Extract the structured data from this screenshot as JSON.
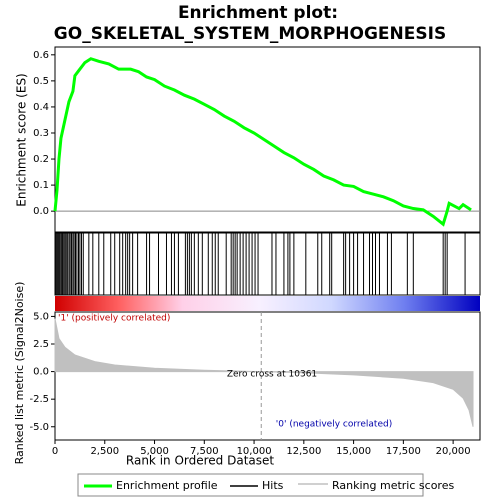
{
  "chart_data": [
    {
      "type": "line",
      "title": "Enrichment plot:",
      "subtitle": "GO_SKELETAL_SYSTEM_MORPHOGENESIS",
      "ylabel": "Enrichment score (ES)",
      "x": [
        0,
        100,
        200,
        300,
        500,
        700,
        900,
        1000,
        1200,
        1500,
        1800,
        2200,
        2700,
        3200,
        3800,
        4200,
        4600,
        5000,
        5500,
        6000,
        6500,
        7000,
        7500,
        8000,
        8500,
        9000,
        9500,
        10000,
        10500,
        11000,
        11500,
        12000,
        12500,
        13000,
        13500,
        14000,
        14500,
        15000,
        15500,
        16000,
        16500,
        17000,
        17500,
        18000,
        18500,
        19000,
        19500,
        19700,
        19800,
        20300,
        20500,
        20900
      ],
      "series": [
        {
          "name": "Enrichment profile",
          "color": "#00ff00",
          "values": [
            0,
            0.08,
            0.2,
            0.28,
            0.35,
            0.42,
            0.46,
            0.52,
            0.54,
            0.57,
            0.585,
            0.575,
            0.565,
            0.545,
            0.545,
            0.535,
            0.515,
            0.505,
            0.48,
            0.465,
            0.445,
            0.43,
            0.41,
            0.39,
            0.365,
            0.345,
            0.32,
            0.3,
            0.275,
            0.25,
            0.225,
            0.205,
            0.18,
            0.16,
            0.135,
            0.12,
            0.1,
            0.095,
            0.075,
            0.065,
            0.055,
            0.04,
            0.02,
            0.01,
            0.005,
            -0.02,
            -0.05,
            0.0,
            0.03,
            0.01,
            0.025,
            0.005
          ]
        }
      ],
      "xlim": [
        0,
        21350
      ],
      "ylim": [
        -0.08,
        0.63
      ],
      "yticks": [
        {
          "value": 0,
          "label": "0.0"
        },
        {
          "value": 0.1,
          "label": "0.1"
        },
        {
          "value": 0.2,
          "label": "0.2"
        },
        {
          "value": 0.3,
          "label": "0.3"
        },
        {
          "value": 0.4,
          "label": "0.4"
        },
        {
          "value": 0.5,
          "label": "0.5"
        },
        {
          "value": 0.6,
          "label": "0.6"
        }
      ]
    },
    {
      "type": "rug",
      "xlim": [
        0,
        21350
      ],
      "series": [
        {
          "name": "Hits",
          "color": "#000000",
          "x": [
            20,
            60,
            110,
            160,
            210,
            260,
            320,
            380,
            440,
            500,
            560,
            620,
            700,
            760,
            830,
            900,
            960,
            1030,
            1100,
            1180,
            1250,
            1330,
            1420,
            1700,
            1900,
            2200,
            2450,
            2800,
            3000,
            3250,
            3400,
            3550,
            3650,
            3750,
            3900,
            4150,
            4600,
            4750,
            5200,
            5600,
            5850,
            6000,
            6200,
            6550,
            6650,
            6750,
            6850,
            7000,
            7200,
            7400,
            7700,
            7900,
            8050,
            8200,
            8600,
            8850,
            8950,
            9050,
            9150,
            9300,
            9450,
            9600,
            9750,
            9900,
            10050,
            10200,
            10900,
            11100,
            11500,
            11700,
            11800,
            12000,
            12600,
            13200,
            13400,
            13800,
            13900,
            14500,
            14600,
            14800,
            15000,
            15200,
            15500,
            15800,
            15950,
            16100,
            16300,
            16700,
            16900,
            17700,
            18000,
            19500,
            19600,
            19700,
            20600
          ]
        }
      ]
    },
    {
      "type": "area",
      "xlabel": "Rank in Ordered Dataset",
      "ylabel": "Ranked list metric (Signal2Noise)",
      "x": [
        0,
        200,
        500,
        1000,
        2000,
        3000,
        5000,
        7500,
        10361,
        12500,
        15000,
        17500,
        19000,
        20000,
        20500,
        20800,
        21000
      ],
      "series": [
        {
          "name": "Ranking metric scores",
          "color": "#c0c0c0",
          "values": [
            4.8,
            3,
            2.2,
            1.5,
            0.9,
            0.6,
            0.3,
            0.12,
            0,
            -0.1,
            -0.3,
            -0.6,
            -1.0,
            -1.6,
            -2.4,
            -3.5,
            -5.0
          ]
        }
      ],
      "xlim": [
        0,
        21350
      ],
      "ylim": [
        -6.2,
        5.4
      ],
      "xticks": [
        0,
        {
          "value": 2500,
          "label": "2,500"
        },
        {
          "value": 5000,
          "label": "5,000"
        },
        {
          "value": 7500,
          "label": "7,500"
        },
        {
          "value": 10000,
          "label": "10,000"
        },
        {
          "value": 12500,
          "label": "12,500"
        },
        {
          "value": 15000,
          "label": "15,000"
        },
        {
          "value": 17500,
          "label": "17,500"
        },
        {
          "value": 20000,
          "label": "20,000"
        }
      ],
      "yticks": [
        {
          "value": 5,
          "label": "5.0"
        },
        {
          "value": 2.5,
          "label": "2.5"
        },
        {
          "value": 0,
          "label": "0.0"
        },
        {
          "value": -2.5,
          "label": "-2.5"
        },
        {
          "value": -5,
          "label": "-5.0"
        }
      ],
      "zero_cross": 10361,
      "annotations": [
        "'1' (positively correlated)",
        "Zero cross at 10361",
        "'0' (negatively correlated)"
      ]
    }
  ]
}
